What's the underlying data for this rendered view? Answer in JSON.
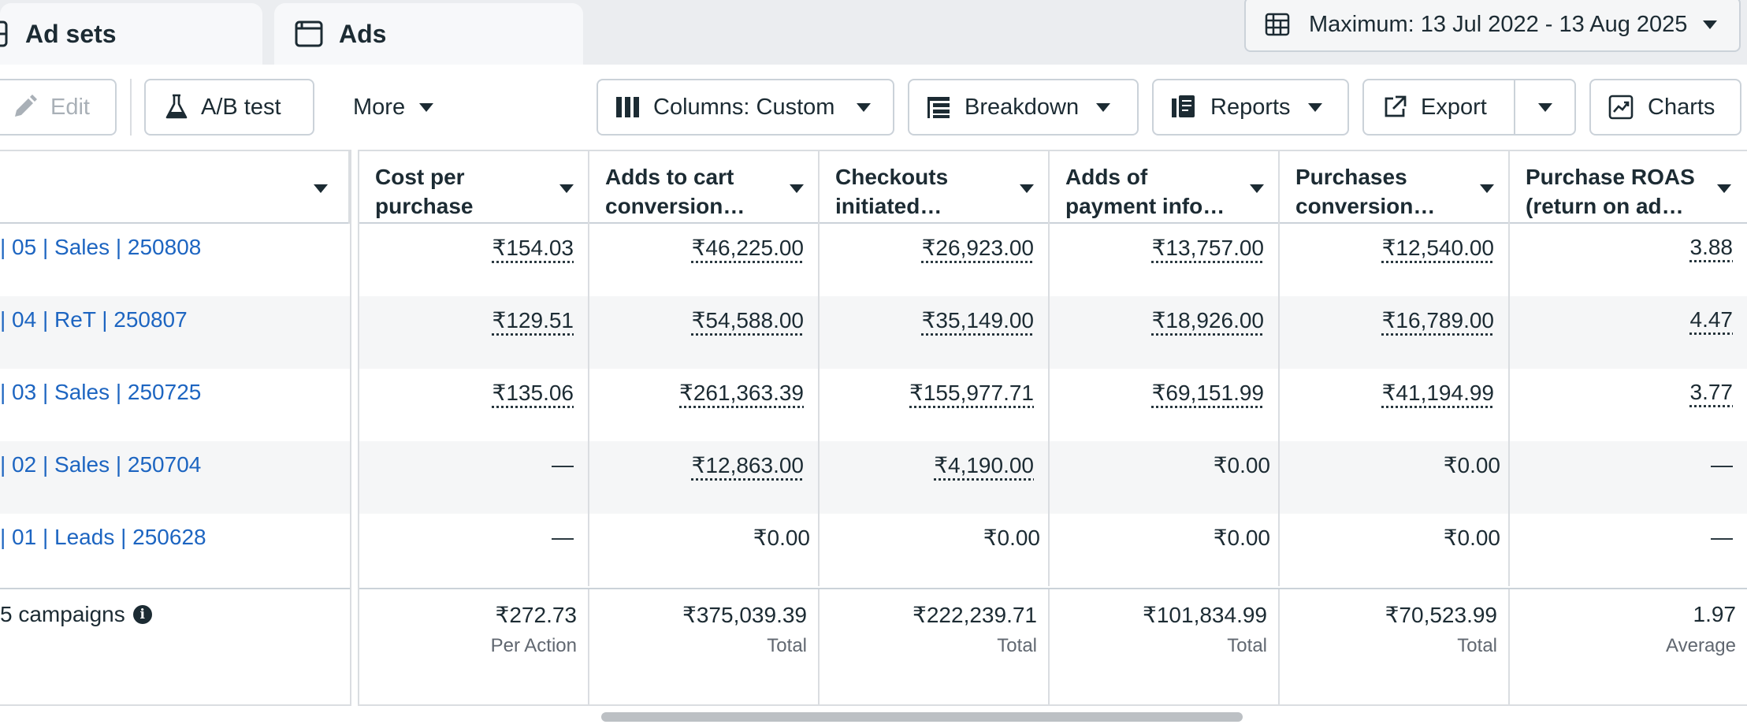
{
  "tabs": {
    "adsets_label": "Ad sets",
    "ads_label": "Ads"
  },
  "date_range": {
    "label": "Maximum: 13 Jul 2022 - 13 Aug 2025",
    "icon": "calendar-table-icon"
  },
  "toolbar": {
    "edit_label": "Edit",
    "abtest_label": "A/B test",
    "more_label": "More",
    "columns_label": "Columns: Custom",
    "breakdown_label": "Breakdown",
    "reports_label": "Reports",
    "export_label": "Export",
    "charts_label": "Charts"
  },
  "columns": [
    {
      "label": "Cost per purchase"
    },
    {
      "label": "Adds to cart conversion…"
    },
    {
      "label": "Checkouts initiated…"
    },
    {
      "label": "Adds of payment info…"
    },
    {
      "label": "Purchases conversion…"
    },
    {
      "label": "Purchase ROAS (return on ad…"
    }
  ],
  "rows": [
    {
      "name": "| 05 | Sales | 250808",
      "values": [
        "₹154.03",
        "₹46,225.00",
        "₹26,923.00",
        "₹13,757.00",
        "₹12,540.00",
        "3.88"
      ]
    },
    {
      "name": "| 04 | ReT | 250807",
      "values": [
        "₹129.51",
        "₹54,588.00",
        "₹35,149.00",
        "₹18,926.00",
        "₹16,789.00",
        "4.47"
      ]
    },
    {
      "name": "| 03 | Sales | 250725",
      "values": [
        "₹135.06",
        "₹261,363.39",
        "₹155,977.71",
        "₹69,151.99",
        "₹41,194.99",
        "3.77"
      ]
    },
    {
      "name": "| 02 | Sales | 250704",
      "values": [
        "—",
        "₹12,863.00",
        "₹4,190.00",
        "₹0.00",
        "₹0.00",
        "—"
      ]
    },
    {
      "name": "| 01 | Leads | 250628",
      "values": [
        "—",
        "₹0.00",
        "₹0.00",
        "₹0.00",
        "₹0.00",
        "—"
      ]
    }
  ],
  "totals": {
    "name": "5 campaigns",
    "values": [
      "₹272.73",
      "₹375,039.39",
      "₹222,239.71",
      "₹101,834.99",
      "₹70,523.99",
      "1.97"
    ],
    "labels": [
      "Per Action",
      "Total",
      "Total",
      "Total",
      "Total",
      "Average"
    ]
  },
  "colors": {
    "link": "#1d65c1",
    "text": "#1c2b33",
    "muted": "#606770",
    "border": "#dadde1"
  }
}
